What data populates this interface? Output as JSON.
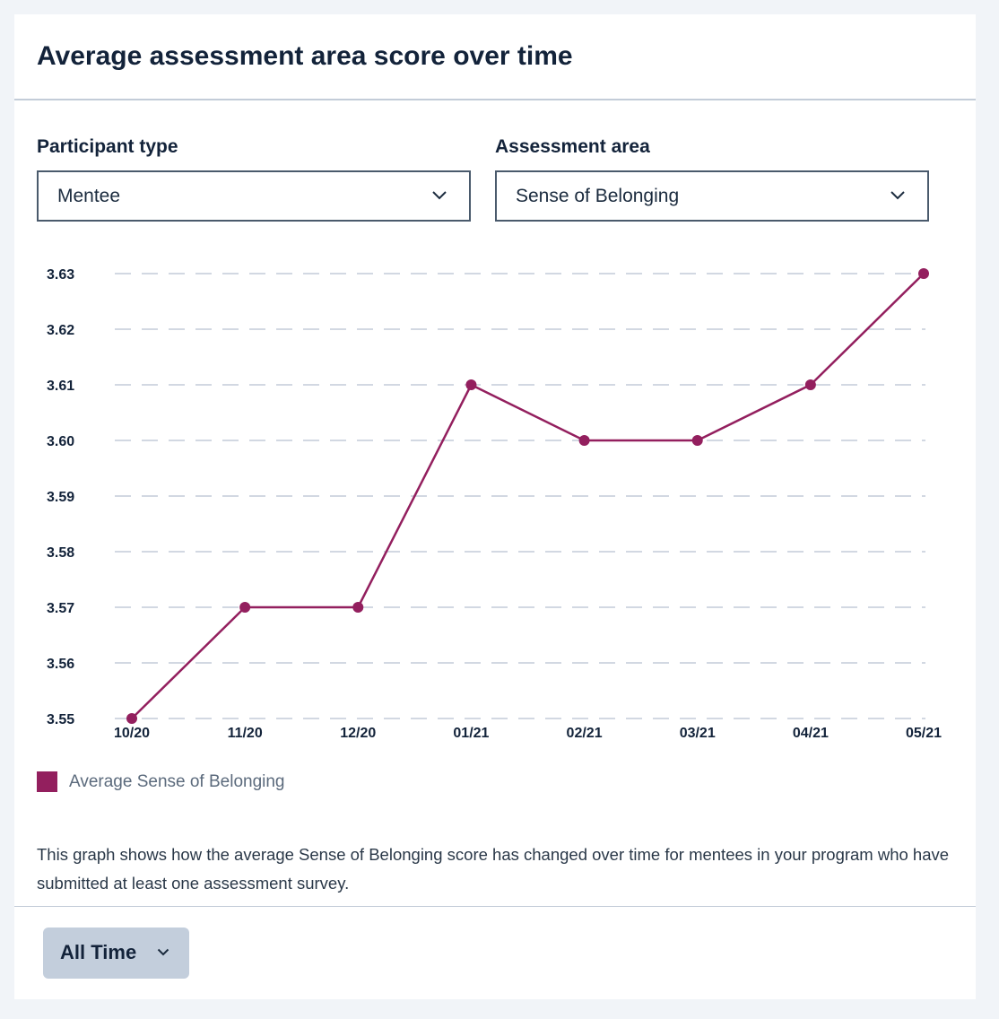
{
  "card": {
    "title": "Average assessment area score over time"
  },
  "filters": {
    "participant_type": {
      "label": "Participant type",
      "value": "Mentee"
    },
    "assessment_area": {
      "label": "Assessment area",
      "value": "Sense of Belonging"
    }
  },
  "chart_data": {
    "type": "line",
    "categories": [
      "10/20",
      "11/20",
      "12/20",
      "01/21",
      "02/21",
      "03/21",
      "04/21",
      "05/21"
    ],
    "series": [
      {
        "name": "Average Sense of Belonging",
        "values": [
          3.55,
          3.57,
          3.57,
          3.61,
          3.6,
          3.6,
          3.61,
          3.63
        ],
        "color": "#931f5e"
      }
    ],
    "y_ticks": [
      "3.55",
      "3.56",
      "3.57",
      "3.58",
      "3.59",
      "3.60",
      "3.61",
      "3.62",
      "3.63"
    ],
    "ylim": [
      3.55,
      3.63
    ],
    "grid": true,
    "legend": "bottom-left"
  },
  "legend": {
    "label": "Average Sense of Belonging"
  },
  "description": "This graph shows how the average Sense of Belonging score has changed over time for mentees in your program who have submitted at least one assessment survey.",
  "footer": {
    "time_range": {
      "label": "All Time",
      "icon": "chevron-down-icon"
    }
  },
  "colors": {
    "accent": "#931f5e",
    "grid": "#c3ccd8",
    "border": "#4a5a6c",
    "button": "#c3cedc"
  }
}
